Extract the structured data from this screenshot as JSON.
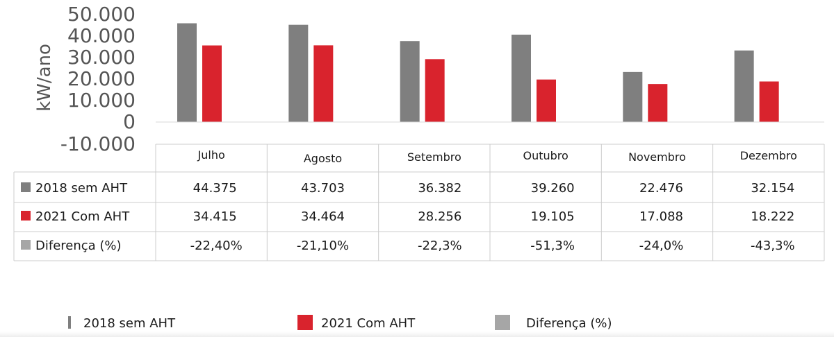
{
  "chart_data": {
    "type": "bar",
    "ylabel": "kW/ano",
    "ylim": [
      -10000,
      50000
    ],
    "yticks": [
      "50.000",
      "40.000",
      "30.000",
      "20.000",
      "10.000",
      "0",
      "-10.000"
    ],
    "categories": [
      "Julho",
      "Agosto",
      "Setembro",
      "Outubro",
      "Novembro",
      "Dezembro"
    ],
    "series": [
      {
        "name": "2018 sem AHT",
        "color": "#7f7f7f",
        "values": [
          44375,
          43703,
          36382,
          39260,
          22476,
          32154
        ],
        "labels": [
          "44.375",
          "43.703",
          "36.382",
          "39.260",
          "22.476",
          "32.154"
        ]
      },
      {
        "name": "2021 Com AHT",
        "color": "#d9232d",
        "values": [
          34415,
          34464,
          28256,
          19105,
          17088,
          18222
        ],
        "labels": [
          "34.415",
          "34.464",
          "28.256",
          "19.105",
          "17.088",
          "18.222"
        ]
      },
      {
        "name": "Diferença (%)",
        "color": "#a6a6a6",
        "labels": [
          "-22,40%",
          "-21,10%",
          "-22,3%",
          "-51,3%",
          "-24,0%",
          "-43,3%"
        ]
      }
    ],
    "legend": "bottom",
    "grid": false,
    "data_table": true
  }
}
